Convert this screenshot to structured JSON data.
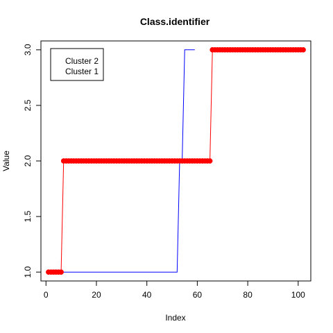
{
  "chart_data": {
    "type": "line",
    "title": "Class.identifier",
    "xlabel": "Index",
    "ylabel": "Value",
    "xlim": [
      -2,
      105
    ],
    "ylim": [
      0.92,
      3.08
    ],
    "xticks": [
      0,
      20,
      40,
      60,
      80,
      100
    ],
    "yticks": [
      1.0,
      1.5,
      2.0,
      2.5,
      3.0
    ],
    "xtick_labels": [
      "0",
      "20",
      "40",
      "60",
      "80",
      "100"
    ],
    "ytick_labels": [
      "1.0",
      "1.5",
      "2.0",
      "2.5",
      "3.0"
    ],
    "grid": false,
    "legend": {
      "position": "top-left",
      "entries": [
        "Cluster 2",
        "Cluster 1"
      ]
    },
    "series": [
      {
        "color": "#ff0000",
        "style": "line+points",
        "segments": [
          {
            "x_start": 1,
            "x_end": 6,
            "value": 1
          },
          {
            "x_start": 7,
            "x_end": 65,
            "value": 2
          },
          {
            "x_start": 66,
            "x_end": 102,
            "value": 3
          }
        ]
      },
      {
        "color": "#0000ff",
        "style": "line",
        "segments": [
          {
            "x_start": 1,
            "x_end": 52,
            "value": 1
          },
          {
            "x_start": 53,
            "x_end": 54,
            "value": 2
          },
          {
            "x_start": 55,
            "x_end": 59,
            "value": 3
          }
        ]
      }
    ]
  }
}
